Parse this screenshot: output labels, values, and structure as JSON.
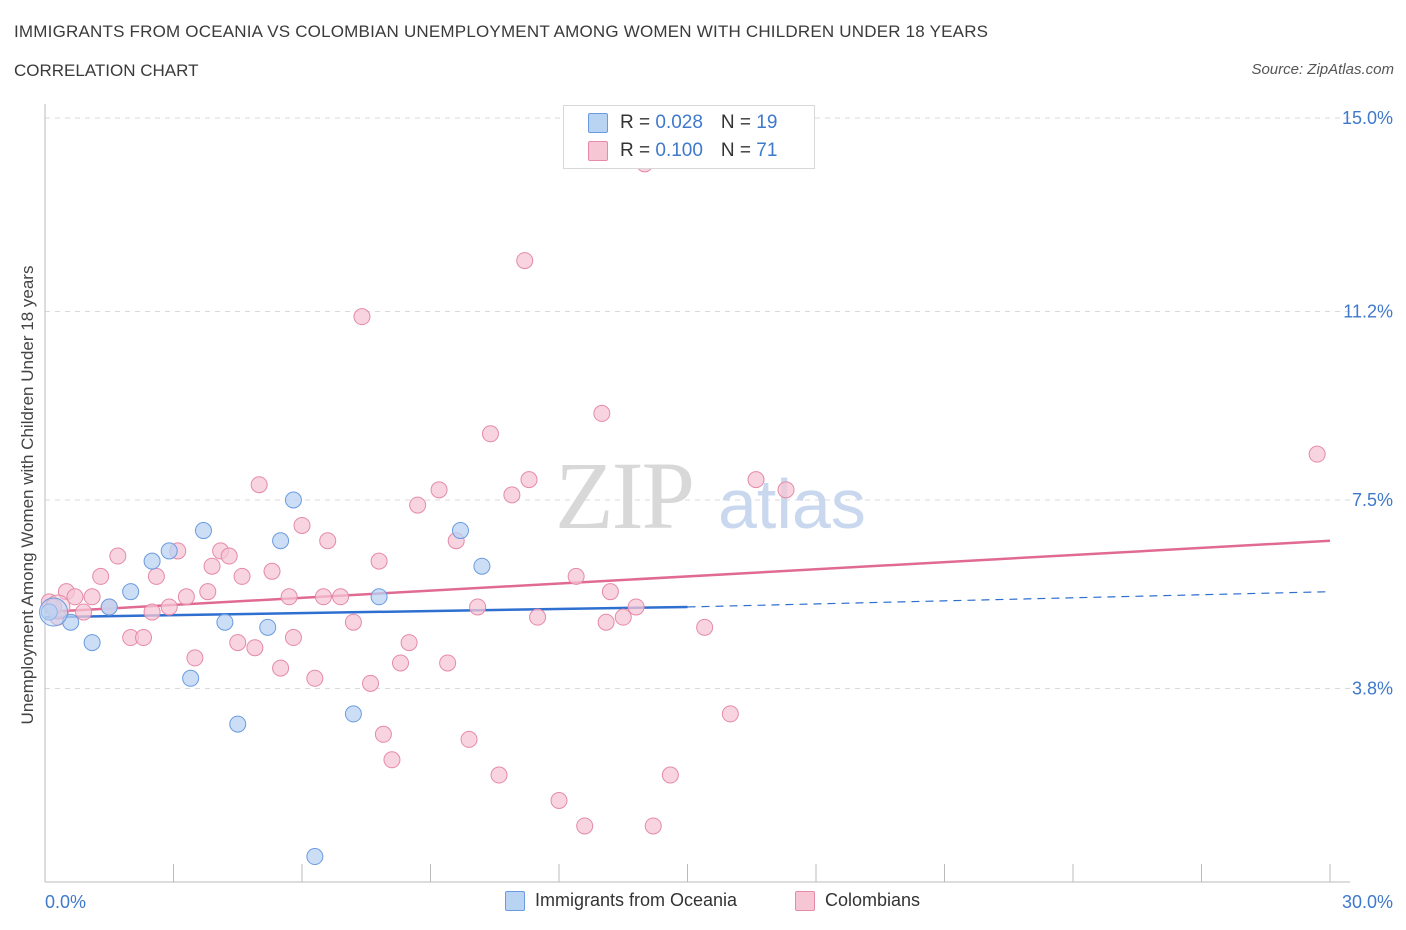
{
  "title": "IMMIGRANTS FROM OCEANIA VS COLOMBIAN UNEMPLOYMENT AMONG WOMEN WITH CHILDREN UNDER 18 YEARS",
  "subtitle": "CORRELATION CHART",
  "source": "Source: ZipAtlas.com",
  "colors": {
    "blue_fill": "#b9d3f3",
    "blue_stroke": "#6a9be0",
    "blue_line": "#2f6fcf",
    "pink_fill": "#f6c6d5",
    "pink_stroke": "#e58aa8",
    "pink_line": "#e06a93",
    "tick_text": "#3f79cc",
    "grid": "#d9d9d9"
  },
  "legend": {
    "rows": [
      {
        "r_label": "R = ",
        "r_value": "0.028",
        "n_label": "N = ",
        "n_value": "19"
      },
      {
        "r_label": "R = ",
        "r_value": "0.100",
        "n_label": "N = ",
        "n_value": "71"
      }
    ]
  },
  "bottom_legend": {
    "series1": "Immigrants from Oceania",
    "series2": "Colombians"
  },
  "chart_data": {
    "type": "scatter",
    "title": "IMMIGRANTS FROM OCEANIA VS COLOMBIAN UNEMPLOYMENT AMONG WOMEN WITH CHILDREN UNDER 18 YEARS",
    "ylabel": "Unemployment Among Women with Children Under 18 years",
    "xlabel": "",
    "xlim": [
      0,
      30
    ],
    "ylim": [
      0,
      15
    ],
    "x_tick_labels": [
      "0.0%",
      "30.0%"
    ],
    "y_ticks": [
      3.8,
      7.5,
      11.2,
      15.0
    ],
    "y_tick_labels": [
      "3.8%",
      "7.5%",
      "11.2%",
      "15.0%"
    ],
    "grid": true,
    "legend_position": "top-center",
    "series": [
      {
        "name": "Immigrants from Oceania",
        "color": "#6a9be0",
        "r": 0.028,
        "n": 19,
        "points": [
          [
            0.1,
            5.3
          ],
          [
            0.6,
            5.1
          ],
          [
            1.1,
            4.7
          ],
          [
            1.5,
            5.4
          ],
          [
            2.0,
            5.7
          ],
          [
            2.5,
            6.3
          ],
          [
            2.9,
            6.5
          ],
          [
            3.4,
            4.0
          ],
          [
            3.7,
            6.9
          ],
          [
            4.2,
            5.1
          ],
          [
            4.5,
            3.1
          ],
          [
            5.2,
            5.0
          ],
          [
            5.5,
            6.7
          ],
          [
            5.8,
            7.5
          ],
          [
            6.3,
            0.5
          ],
          [
            7.2,
            3.3
          ],
          [
            7.8,
            5.6
          ],
          [
            9.7,
            6.9
          ],
          [
            10.2,
            6.2
          ]
        ],
        "trend_solid": [
          [
            0,
            5.2
          ],
          [
            15,
            5.4
          ]
        ],
        "trend_dashed": [
          [
            15,
            5.4
          ],
          [
            30,
            5.7
          ]
        ]
      },
      {
        "name": "Colombians",
        "color": "#e58aa8",
        "r": 0.1,
        "n": 71,
        "points": [
          [
            0.1,
            5.5
          ],
          [
            0.3,
            5.2
          ],
          [
            0.5,
            5.7
          ],
          [
            0.7,
            5.6
          ],
          [
            0.9,
            5.3
          ],
          [
            1.1,
            5.6
          ],
          [
            1.3,
            6.0
          ],
          [
            1.5,
            5.4
          ],
          [
            1.7,
            6.4
          ],
          [
            2.0,
            4.8
          ],
          [
            2.3,
            4.8
          ],
          [
            2.5,
            5.3
          ],
          [
            2.6,
            6.0
          ],
          [
            2.9,
            5.4
          ],
          [
            3.1,
            6.5
          ],
          [
            3.3,
            5.6
          ],
          [
            3.5,
            4.4
          ],
          [
            3.8,
            5.7
          ],
          [
            3.9,
            6.2
          ],
          [
            4.1,
            6.5
          ],
          [
            4.3,
            6.4
          ],
          [
            4.5,
            4.7
          ],
          [
            4.6,
            6.0
          ],
          [
            4.9,
            4.6
          ],
          [
            5.0,
            7.8
          ],
          [
            5.3,
            6.1
          ],
          [
            5.5,
            4.2
          ],
          [
            5.7,
            5.6
          ],
          [
            5.8,
            4.8
          ],
          [
            6.0,
            7.0
          ],
          [
            6.3,
            4.0
          ],
          [
            6.5,
            5.6
          ],
          [
            6.6,
            6.7
          ],
          [
            6.9,
            5.6
          ],
          [
            7.2,
            5.1
          ],
          [
            7.4,
            11.1
          ],
          [
            7.6,
            3.9
          ],
          [
            7.8,
            6.3
          ],
          [
            7.9,
            2.9
          ],
          [
            8.1,
            2.4
          ],
          [
            8.3,
            4.3
          ],
          [
            8.5,
            4.7
          ],
          [
            8.7,
            7.4
          ],
          [
            9.2,
            7.7
          ],
          [
            9.4,
            4.3
          ],
          [
            9.6,
            6.7
          ],
          [
            9.9,
            2.8
          ],
          [
            10.1,
            5.4
          ],
          [
            10.4,
            8.8
          ],
          [
            10.6,
            2.1
          ],
          [
            10.9,
            7.6
          ],
          [
            11.2,
            12.2
          ],
          [
            11.3,
            7.9
          ],
          [
            11.5,
            5.2
          ],
          [
            12.0,
            1.6
          ],
          [
            12.4,
            6.0
          ],
          [
            12.6,
            1.1
          ],
          [
            13.0,
            9.2
          ],
          [
            13.1,
            5.1
          ],
          [
            13.5,
            5.2
          ],
          [
            13.8,
            5.4
          ],
          [
            14.0,
            14.1
          ],
          [
            14.2,
            1.1
          ],
          [
            14.6,
            2.1
          ],
          [
            15.4,
            5.0
          ],
          [
            16.0,
            3.3
          ],
          [
            16.6,
            7.9
          ],
          [
            17.3,
            7.7
          ],
          [
            13.2,
            5.7
          ],
          [
            29.7,
            8.4
          ],
          [
            0.2,
            5.4
          ]
        ],
        "trend_solid": [
          [
            0,
            5.3
          ],
          [
            30,
            6.7
          ]
        ]
      }
    ]
  }
}
